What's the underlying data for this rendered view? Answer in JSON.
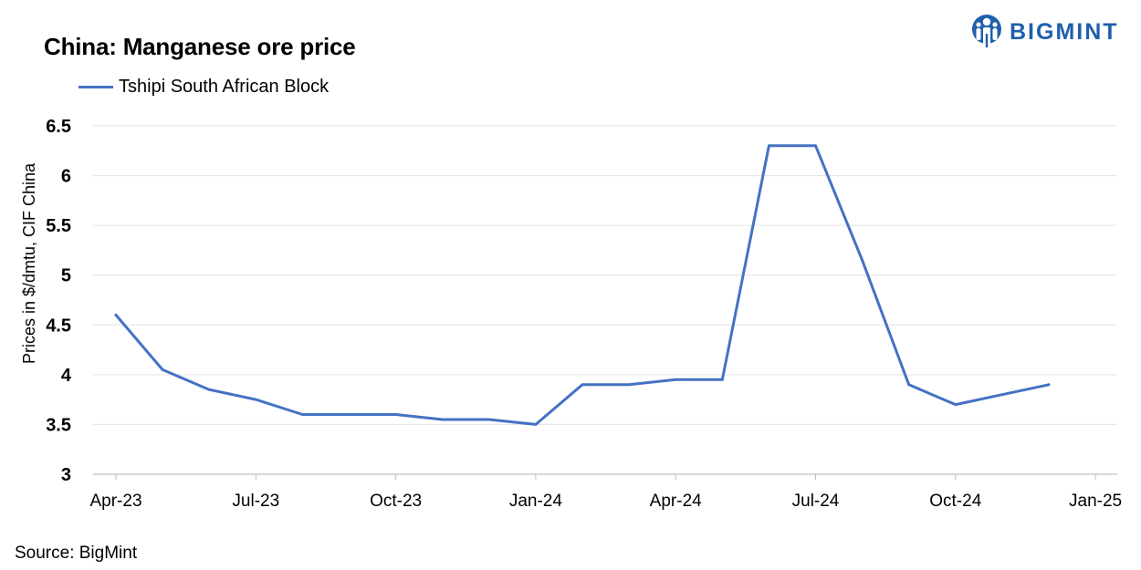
{
  "brand": {
    "name": "BIGMINT",
    "color": "#1f5fad",
    "logo_icon": "person-logo-icon"
  },
  "source": {
    "text": "Source:  BigMint"
  },
  "chart_data": {
    "type": "line",
    "title": "China: Manganese ore price",
    "xlabel": "",
    "ylabel": "Prices in $/dmtu, CIF China",
    "ylim": [
      3,
      6.5
    ],
    "yticks": [
      "3",
      "3.5",
      "4",
      "4.5",
      "5",
      "5.5",
      "6",
      "6.5"
    ],
    "xticks": [
      "Apr-23",
      "Jul-23",
      "Oct-23",
      "Jan-24",
      "Apr-24",
      "Jul-24",
      "Oct-24",
      "Jan-25"
    ],
    "grid": true,
    "legend_position": "top-left",
    "x": [
      "Apr-23",
      "May-23",
      "Jun-23",
      "Jul-23",
      "Aug-23",
      "Sep-23",
      "Oct-23",
      "Nov-23",
      "Dec-23",
      "Jan-24",
      "Feb-24",
      "Mar-24",
      "Apr-24",
      "May-24",
      "Jun-24",
      "Jul-24",
      "Aug-24",
      "Sep-24",
      "Oct-24",
      "Nov-24",
      "Dec-24"
    ],
    "series": [
      {
        "name": "Tshipi South African Block",
        "color": "#4472c4",
        "values": [
          4.6,
          4.05,
          3.85,
          3.75,
          3.6,
          3.6,
          3.6,
          3.55,
          3.55,
          3.5,
          3.9,
          3.9,
          3.95,
          3.95,
          6.3,
          6.3,
          5.15,
          3.9,
          3.7,
          3.8,
          3.9
        ]
      }
    ]
  }
}
